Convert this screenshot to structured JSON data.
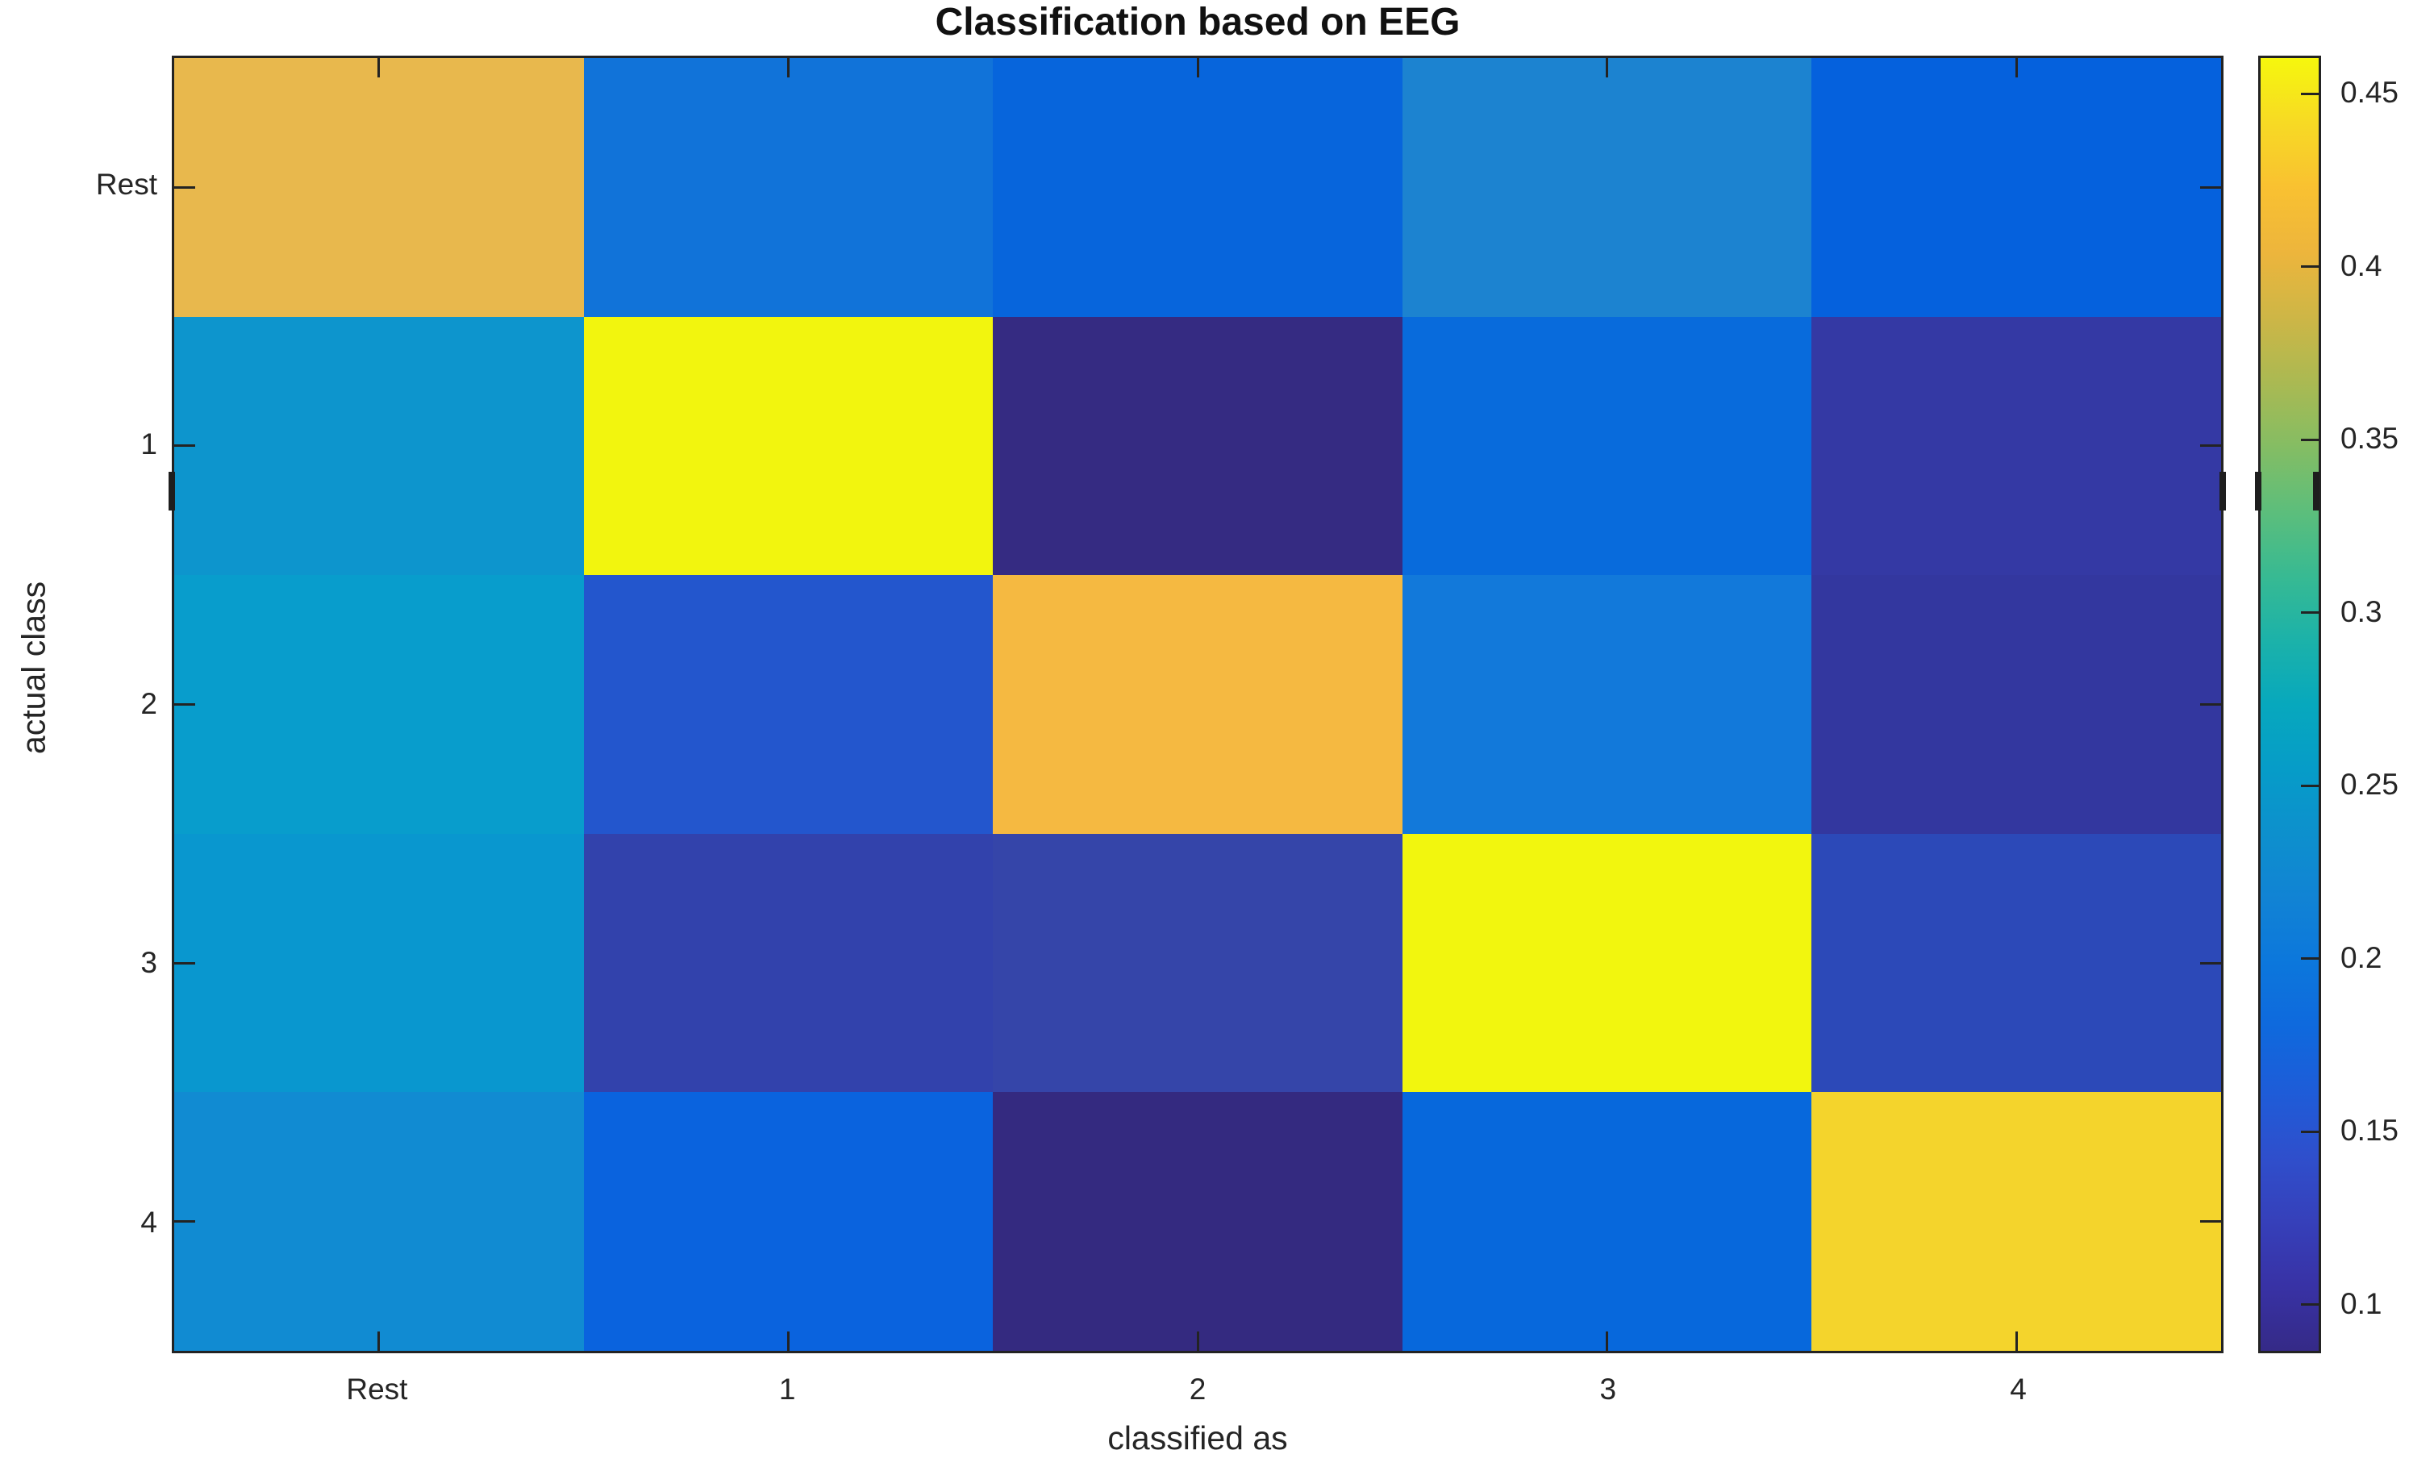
{
  "figure": {
    "title": "Classification based on EEG",
    "xlabel": "classified as",
    "ylabel": "actual class"
  },
  "axes": {
    "x_tick_labels": [
      "Rest",
      "1",
      "2",
      "3",
      "4"
    ],
    "y_tick_labels": [
      "Rest",
      "1",
      "2",
      "3",
      "4"
    ]
  },
  "colorbar": {
    "tick_labels": [
      "0.45",
      "0.4",
      "0.35",
      "0.3",
      "0.25",
      "0.2",
      "0.15",
      "0.1"
    ],
    "tick_values": [
      0.45,
      0.4,
      0.35,
      0.3,
      0.25,
      0.2,
      0.15,
      0.1
    ],
    "value_min": 0.086,
    "value_max": 0.461,
    "colormap_name": "parula",
    "gradient_colors_bottom_to_top": [
      "#352a87",
      "#3832a5",
      "#3640ba",
      "#2f4fcc",
      "#1e5cd8",
      "#0f69dd",
      "#0c77dc",
      "#1183d4",
      "#0d90cd",
      "#069cc8",
      "#07a8bd",
      "#1cb2a9",
      "#38ba92",
      "#5dbe7b",
      "#85bd63",
      "#abb952",
      "#ceb646",
      "#edb53c",
      "#f9c131",
      "#f7da24",
      "#f6f70d"
    ]
  },
  "chart_data": {
    "type": "heatmap",
    "title": "Classification based on EEG",
    "xlabel": "classified as",
    "ylabel": "actual class",
    "columns": [
      "Rest",
      "1",
      "2",
      "3",
      "4"
    ],
    "rows": [
      "Rest",
      "1",
      "2",
      "3",
      "4"
    ],
    "values": [
      [
        0.38,
        0.16,
        0.15,
        0.17,
        0.15
      ],
      [
        0.19,
        0.46,
        0.09,
        0.15,
        0.1
      ],
      [
        0.2,
        0.14,
        0.4,
        0.16,
        0.1
      ],
      [
        0.19,
        0.11,
        0.11,
        0.46,
        0.12
      ],
      [
        0.18,
        0.15,
        0.09,
        0.15,
        0.43
      ]
    ],
    "cell_colors": [
      [
        "#e8b84d",
        "#1173d9",
        "#0765dc",
        "#1c83d0",
        "#0561dd"
      ],
      [
        "#0d95cd",
        "#f2f50e",
        "#352b82",
        "#086bdc",
        "#3439a4"
      ],
      [
        "#089dcc",
        "#2356cd",
        "#f5b941",
        "#1279da",
        "#33379f"
      ],
      [
        "#0997cf",
        "#3242ac",
        "#3545a9",
        "#f2f60e",
        "#2c49b8"
      ],
      [
        "#118bd2",
        "#0a63de",
        "#342a80",
        "#0768dc",
        "#f4d42c"
      ]
    ],
    "color_axis_range": [
      0.086,
      0.461
    ],
    "legend_position": "right-colorbar",
    "grid": false
  }
}
